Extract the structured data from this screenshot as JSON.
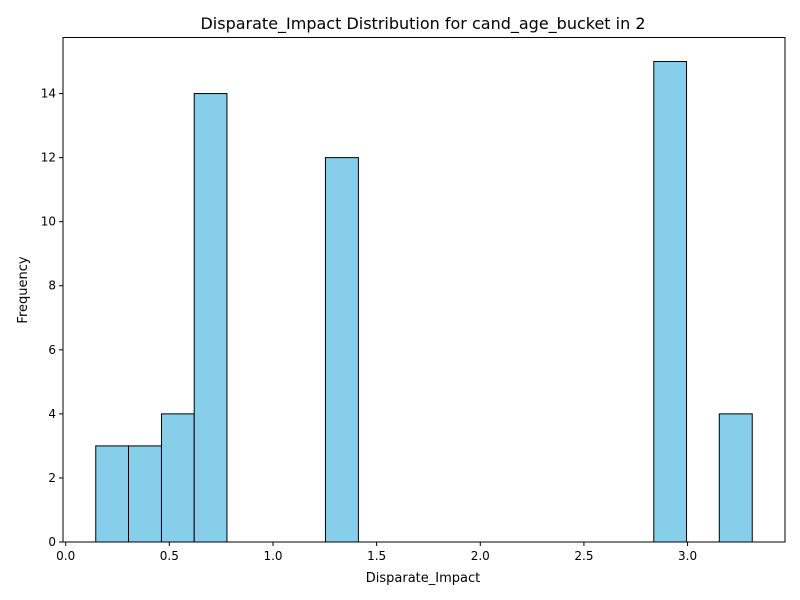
{
  "chart_data": {
    "type": "bar",
    "title": "Disparate_Impact Distribution for cand_age_bucket in 2",
    "xlabel": "Disparate_Impact",
    "ylabel": "Frequency",
    "bin_width": 0.1583,
    "bins": [
      {
        "x0": 0.145,
        "x1": 0.303,
        "count": 3
      },
      {
        "x0": 0.303,
        "x1": 0.462,
        "count": 3
      },
      {
        "x0": 0.462,
        "x1": 0.62,
        "count": 4
      },
      {
        "x0": 0.62,
        "x1": 0.778,
        "count": 14
      },
      {
        "x0": 0.778,
        "x1": 0.937,
        "count": 0
      },
      {
        "x0": 0.937,
        "x1": 1.095,
        "count": 0
      },
      {
        "x0": 1.095,
        "x1": 1.253,
        "count": 0
      },
      {
        "x0": 1.253,
        "x1": 1.412,
        "count": 12
      },
      {
        "x0": 1.412,
        "x1": 1.57,
        "count": 0
      },
      {
        "x0": 1.57,
        "x1": 1.728,
        "count": 0
      },
      {
        "x0": 1.728,
        "x1": 1.887,
        "count": 0
      },
      {
        "x0": 1.887,
        "x1": 2.045,
        "count": 0
      },
      {
        "x0": 2.045,
        "x1": 2.203,
        "count": 0
      },
      {
        "x0": 2.203,
        "x1": 2.362,
        "count": 0
      },
      {
        "x0": 2.362,
        "x1": 2.52,
        "count": 0
      },
      {
        "x0": 2.52,
        "x1": 2.678,
        "count": 0
      },
      {
        "x0": 2.678,
        "x1": 2.837,
        "count": 0
      },
      {
        "x0": 2.837,
        "x1": 2.995,
        "count": 15
      },
      {
        "x0": 2.995,
        "x1": 3.153,
        "count": 0
      },
      {
        "x0": 3.153,
        "x1": 3.312,
        "count": 4
      }
    ],
    "xlim": [
      -0.013,
      3.47
    ],
    "ylim": [
      0,
      15.75
    ],
    "x_ticks": [
      0.0,
      0.5,
      1.0,
      1.5,
      2.0,
      2.5,
      3.0
    ],
    "x_tick_labels": [
      "0.0",
      "0.5",
      "1.0",
      "1.5",
      "2.0",
      "2.5",
      "3.0"
    ],
    "y_ticks": [
      0,
      2,
      4,
      6,
      8,
      10,
      12,
      14
    ],
    "y_tick_labels": [
      "0",
      "2",
      "4",
      "6",
      "8",
      "10",
      "12",
      "14"
    ],
    "bar_color": "#87ceeb",
    "edge_color": "#000000",
    "grid": false,
    "legend": "none"
  }
}
